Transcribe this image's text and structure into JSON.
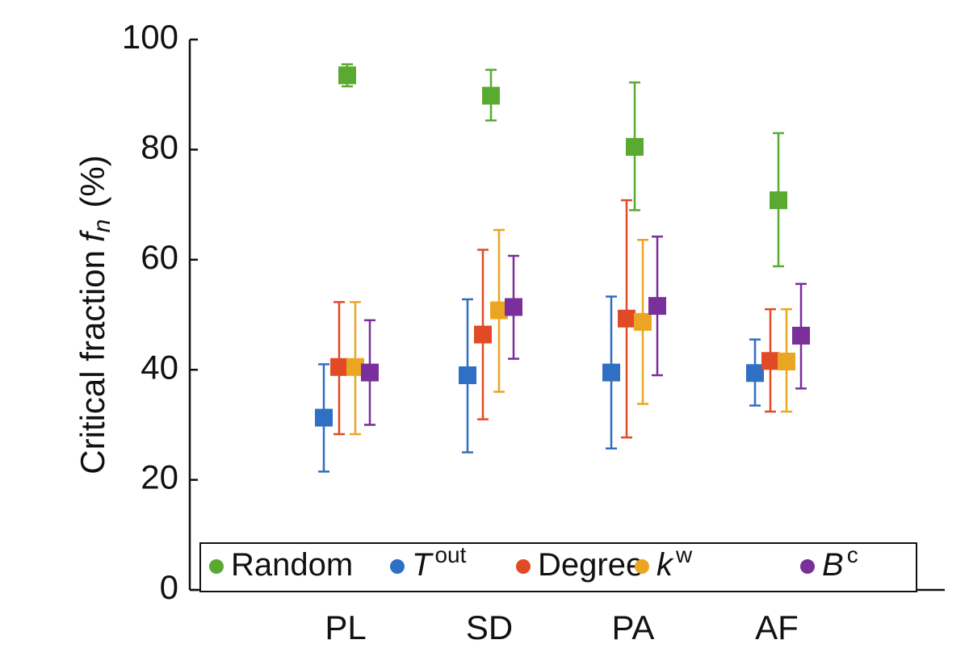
{
  "chart_data": {
    "type": "errorbar",
    "ylabel": {
      "text": "Critical fraction",
      "symbol": "f",
      "subscript": "n",
      "unit": "(%)"
    },
    "categories": [
      "PL",
      "SD",
      "PA",
      "AF"
    ],
    "ylim": [
      0,
      100
    ],
    "yticks": [
      0,
      20,
      40,
      60,
      80,
      100
    ],
    "series": [
      {
        "name": "Random",
        "color": "#5aaa32",
        "values": [
          93.5,
          89.8,
          80.5,
          70.8
        ],
        "low": [
          91.5,
          85.3,
          69,
          58.8
        ],
        "high": [
          95.5,
          94.5,
          92.2,
          83
        ]
      },
      {
        "name": "T",
        "superscript": "out",
        "color": "#2f6fc4",
        "values": [
          31.3,
          39,
          39.5,
          39.4
        ],
        "low": [
          21.5,
          25,
          25.7,
          33.5
        ],
        "high": [
          41,
          52.8,
          53.3,
          45.5
        ]
      },
      {
        "name": "Degree",
        "color": "#e04a26",
        "values": [
          40.5,
          46.4,
          49.3,
          41.6
        ],
        "low": [
          28.3,
          31,
          27.7,
          32.4
        ],
        "high": [
          52.3,
          61.8,
          70.8,
          51
        ]
      },
      {
        "name": "k",
        "superscript": "w",
        "color": "#eaa622",
        "values": [
          40.5,
          50.8,
          48.7,
          41.5
        ],
        "low": [
          28.3,
          36,
          33.8,
          32.4
        ],
        "high": [
          52.3,
          65.4,
          63.6,
          51
        ]
      },
      {
        "name": "B",
        "superscript": "c",
        "color": "#7a2f9a",
        "values": [
          39.5,
          51.4,
          51.6,
          46.2
        ],
        "low": [
          30,
          42,
          39,
          36.6
        ],
        "high": [
          49,
          60.7,
          64.2,
          55.6
        ]
      }
    ],
    "legend": "bottom"
  }
}
